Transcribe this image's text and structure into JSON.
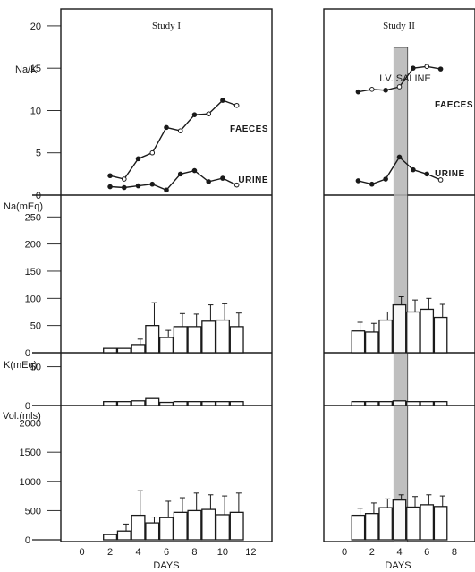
{
  "chart_data": [
    {
      "type": "line",
      "title": "Study I",
      "panel_label": "Na/K",
      "x_ticks": [
        0,
        2,
        4,
        6,
        8,
        10,
        12
      ],
      "xlabel": "DAYS",
      "xlim": [
        -1.5,
        13.5
      ],
      "ylim": [
        0,
        22
      ],
      "y_ticks": [
        0,
        5,
        10,
        15,
        20
      ],
      "series": [
        {
          "name": "FAECES",
          "x": [
            2,
            3,
            4,
            5,
            6,
            7,
            8,
            9,
            10,
            11
          ],
          "y": [
            2.3,
            1.9,
            4.3,
            5.0,
            8.0,
            7.6,
            9.5,
            9.6,
            11.2,
            10.6
          ]
        },
        {
          "name": "URINE",
          "x": [
            2,
            3,
            4,
            5,
            6,
            7,
            8,
            9,
            10,
            11
          ],
          "y": [
            1.0,
            0.9,
            1.1,
            1.3,
            0.6,
            2.5,
            2.9,
            1.6,
            2.0,
            1.2
          ]
        }
      ]
    },
    {
      "type": "bar",
      "title": "Study I",
      "panel_label": "Na(mEq)",
      "x": [
        2,
        3,
        4,
        5,
        6,
        7,
        8,
        9,
        10,
        11
      ],
      "values": [
        8,
        8,
        15,
        50,
        28,
        48,
        48,
        58,
        60,
        48
      ],
      "errors": [
        0,
        0,
        10,
        42,
        13,
        24,
        23,
        30,
        30,
        25
      ],
      "ylim": [
        0,
        290
      ],
      "y_ticks": [
        0,
        50,
        100,
        150,
        200,
        250
      ]
    },
    {
      "type": "bar",
      "title": "Study I",
      "panel_label": "K(mEq)",
      "x": [
        2,
        3,
        4,
        5,
        6,
        7,
        8,
        9,
        10,
        11
      ],
      "values": [
        5,
        5,
        6,
        9,
        4,
        5,
        5,
        5,
        5,
        5
      ],
      "errors": [
        0,
        0,
        0,
        0,
        0,
        0,
        0,
        0,
        0,
        0
      ],
      "ylim": [
        0,
        68
      ],
      "y_ticks": [
        0,
        50
      ]
    },
    {
      "type": "bar",
      "title": "Study I",
      "panel_label": "Vol.(mls)",
      "x": [
        2,
        3,
        4,
        5,
        6,
        7,
        8,
        9,
        10,
        11
      ],
      "values": [
        90,
        150,
        420,
        290,
        380,
        470,
        500,
        520,
        430,
        470
      ],
      "errors": [
        0,
        120,
        420,
        100,
        280,
        250,
        300,
        250,
        320,
        330
      ],
      "ylim": [
        0,
        2300
      ],
      "y_ticks": [
        0,
        500,
        1000,
        1500,
        2000
      ]
    },
    {
      "type": "line",
      "title": "Study II",
      "annotation": "I.V. SALINE",
      "x_ticks": [
        0,
        2,
        4,
        6,
        8
      ],
      "xlabel": "DAYS",
      "xlim": [
        -1.5,
        9.5
      ],
      "ylim": [
        0,
        22
      ],
      "series": [
        {
          "name": "FAECES",
          "x": [
            1,
            2,
            3,
            4,
            5,
            6,
            7
          ],
          "y": [
            12.2,
            12.5,
            12.4,
            12.8,
            15.0,
            15.2,
            14.9
          ]
        },
        {
          "name": "URINE",
          "x": [
            1,
            2,
            3,
            4,
            5,
            6,
            7
          ],
          "y": [
            1.7,
            1.3,
            1.9,
            4.5,
            3.0,
            2.5,
            1.8
          ]
        }
      ]
    },
    {
      "type": "bar",
      "title": "Study II",
      "x": [
        1,
        2,
        3,
        4,
        5,
        6,
        7
      ],
      "values": [
        40,
        38,
        60,
        88,
        75,
        80,
        65
      ],
      "errors": [
        16,
        16,
        15,
        15,
        22,
        20,
        24
      ],
      "ylim": [
        0,
        290
      ]
    },
    {
      "type": "bar",
      "title": "Study II",
      "x": [
        1,
        2,
        3,
        4,
        5,
        6,
        7
      ],
      "values": [
        5,
        5,
        5,
        6,
        5,
        5,
        5
      ],
      "errors": [
        0,
        0,
        0,
        0,
        0,
        0,
        0
      ],
      "ylim": [
        0,
        68
      ]
    },
    {
      "type": "bar",
      "title": "Study II",
      "x": [
        1,
        2,
        3,
        4,
        5,
        6,
        7
      ],
      "values": [
        420,
        450,
        550,
        680,
        560,
        600,
        570
      ],
      "errors": [
        120,
        180,
        150,
        90,
        180,
        170,
        180
      ],
      "ylim": [
        0,
        2300
      ]
    }
  ],
  "saline_band": {
    "from": 3.6,
    "to": 4.6,
    "color": "#b5b5b5"
  },
  "colors": {
    "ink": "#1a1a1a",
    "paper": "#ffffff"
  }
}
